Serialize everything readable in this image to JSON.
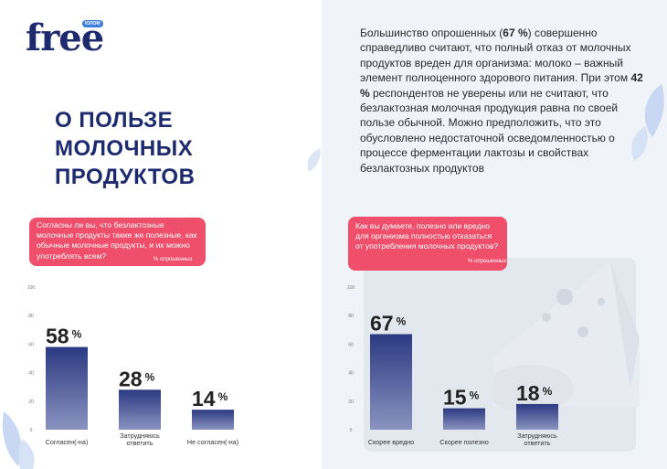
{
  "logo": {
    "text": "free",
    "badge": "ЮЛОМ"
  },
  "page_title_lines": [
    "О ПОЛЬЗЕ",
    "МОЛОЧНЫХ",
    "ПРОДУКТОВ"
  ],
  "intro": {
    "p1": "Большинство опрошенных (",
    "v1": "67 %",
    "p2": ") совершенно справедливо считают, что полный отказ от молочных продуктов вреден для организма: молоко – важный элемент полноценного здорового питания. При этом ",
    "v2": "42 %",
    "p3": " респондентов не уверены или не считают, что безлактозная молочная продукция равна по своей пользе обычной. Можно предположить, что это обусловлено недостаточной осведомленностью о процессе ферментации лактозы и свойствах безлактозных продуктов"
  },
  "colors": {
    "accent_pink": "#ef4f6a",
    "brand_navy": "#1d2b6e",
    "bar_top": "#2b3a82",
    "bar_bottom": "#8a93c0"
  },
  "icons": [
    "leaf-icon",
    "cheese-illustration"
  ],
  "chart_data": [
    {
      "type": "bar",
      "title": "Согласны ли вы, что безлактозные молочные продукты такие же полезные, как обычные молочные продукты, и их можно употреблять всем?",
      "ylabel": "% опрошенных",
      "categories": [
        "Согласен(-на)",
        "Затрудняюсь ответить",
        "Не согласен(-на)"
      ],
      "values": [
        58,
        28,
        14
      ],
      "value_suffix": "%",
      "ylim": [
        0,
        100
      ],
      "yticks": [
        0,
        20,
        40,
        60,
        80,
        100
      ],
      "grid": false
    },
    {
      "type": "bar",
      "title": "Как вы думаете, полезно или вредно для организма полностью отказаться от употребления молочных продуктов?",
      "ylabel": "% опрошенных",
      "categories": [
        "Скорее вредно",
        "Скорее полезно",
        "Затрудняюсь ответить"
      ],
      "values": [
        67,
        15,
        18
      ],
      "value_suffix": "%",
      "ylim": [
        0,
        100
      ],
      "yticks": [
        0,
        20,
        40,
        60,
        80,
        100
      ],
      "grid": false
    }
  ]
}
